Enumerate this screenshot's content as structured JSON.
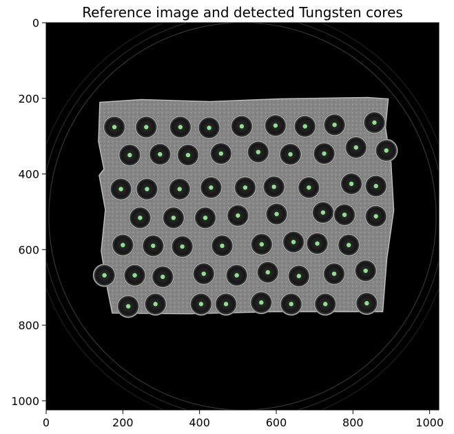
{
  "chart_data": {
    "type": "image",
    "title": "Reference image and detected Tungsten cores",
    "xlabel": "",
    "ylabel": "",
    "xlim": [
      0,
      1024
    ],
    "ylim": [
      1024,
      0
    ],
    "x_ticks": [
      0,
      200,
      400,
      600,
      800,
      1000
    ],
    "y_ticks": [
      0,
      200,
      400,
      600,
      800,
      1000
    ],
    "grid": false,
    "colors": {
      "background": "#000000",
      "sample": "#8c8c8c",
      "core_ring": "#262626",
      "detection_marker": "#8ee08e",
      "ring_artifact": "#6a6a6a"
    },
    "sample_region": {
      "x": [
        140,
        910
      ],
      "y": [
        205,
        768
      ]
    },
    "detected_cores": [
      {
        "x": 178,
        "y": 276
      },
      {
        "x": 261,
        "y": 276
      },
      {
        "x": 350,
        "y": 276
      },
      {
        "x": 425,
        "y": 278
      },
      {
        "x": 510,
        "y": 274
      },
      {
        "x": 598,
        "y": 272
      },
      {
        "x": 675,
        "y": 274
      },
      {
        "x": 752,
        "y": 270
      },
      {
        "x": 856,
        "y": 264
      },
      {
        "x": 218,
        "y": 350
      },
      {
        "x": 297,
        "y": 348
      },
      {
        "x": 370,
        "y": 350
      },
      {
        "x": 456,
        "y": 346
      },
      {
        "x": 553,
        "y": 342
      },
      {
        "x": 637,
        "y": 348
      },
      {
        "x": 725,
        "y": 346
      },
      {
        "x": 808,
        "y": 330
      },
      {
        "x": 887,
        "y": 338
      },
      {
        "x": 195,
        "y": 440
      },
      {
        "x": 263,
        "y": 440
      },
      {
        "x": 348,
        "y": 440
      },
      {
        "x": 430,
        "y": 436
      },
      {
        "x": 519,
        "y": 436
      },
      {
        "x": 594,
        "y": 434
      },
      {
        "x": 685,
        "y": 436
      },
      {
        "x": 796,
        "y": 426
      },
      {
        "x": 860,
        "y": 432
      },
      {
        "x": 245,
        "y": 516
      },
      {
        "x": 332,
        "y": 516
      },
      {
        "x": 415,
        "y": 516
      },
      {
        "x": 500,
        "y": 510
      },
      {
        "x": 601,
        "y": 506
      },
      {
        "x": 722,
        "y": 502
      },
      {
        "x": 778,
        "y": 508
      },
      {
        "x": 860,
        "y": 512
      },
      {
        "x": 200,
        "y": 588
      },
      {
        "x": 279,
        "y": 590
      },
      {
        "x": 355,
        "y": 592
      },
      {
        "x": 459,
        "y": 590
      },
      {
        "x": 562,
        "y": 586
      },
      {
        "x": 645,
        "y": 580
      },
      {
        "x": 707,
        "y": 584
      },
      {
        "x": 789,
        "y": 588
      },
      {
        "x": 152,
        "y": 668
      },
      {
        "x": 231,
        "y": 668
      },
      {
        "x": 304,
        "y": 672
      },
      {
        "x": 411,
        "y": 664
      },
      {
        "x": 497,
        "y": 668
      },
      {
        "x": 578,
        "y": 660
      },
      {
        "x": 659,
        "y": 670
      },
      {
        "x": 751,
        "y": 664
      },
      {
        "x": 833,
        "y": 656
      },
      {
        "x": 214,
        "y": 750
      },
      {
        "x": 285,
        "y": 744
      },
      {
        "x": 404,
        "y": 744
      },
      {
        "x": 469,
        "y": 744
      },
      {
        "x": 561,
        "y": 740
      },
      {
        "x": 639,
        "y": 744
      },
      {
        "x": 728,
        "y": 744
      },
      {
        "x": 836,
        "y": 742
      }
    ]
  }
}
